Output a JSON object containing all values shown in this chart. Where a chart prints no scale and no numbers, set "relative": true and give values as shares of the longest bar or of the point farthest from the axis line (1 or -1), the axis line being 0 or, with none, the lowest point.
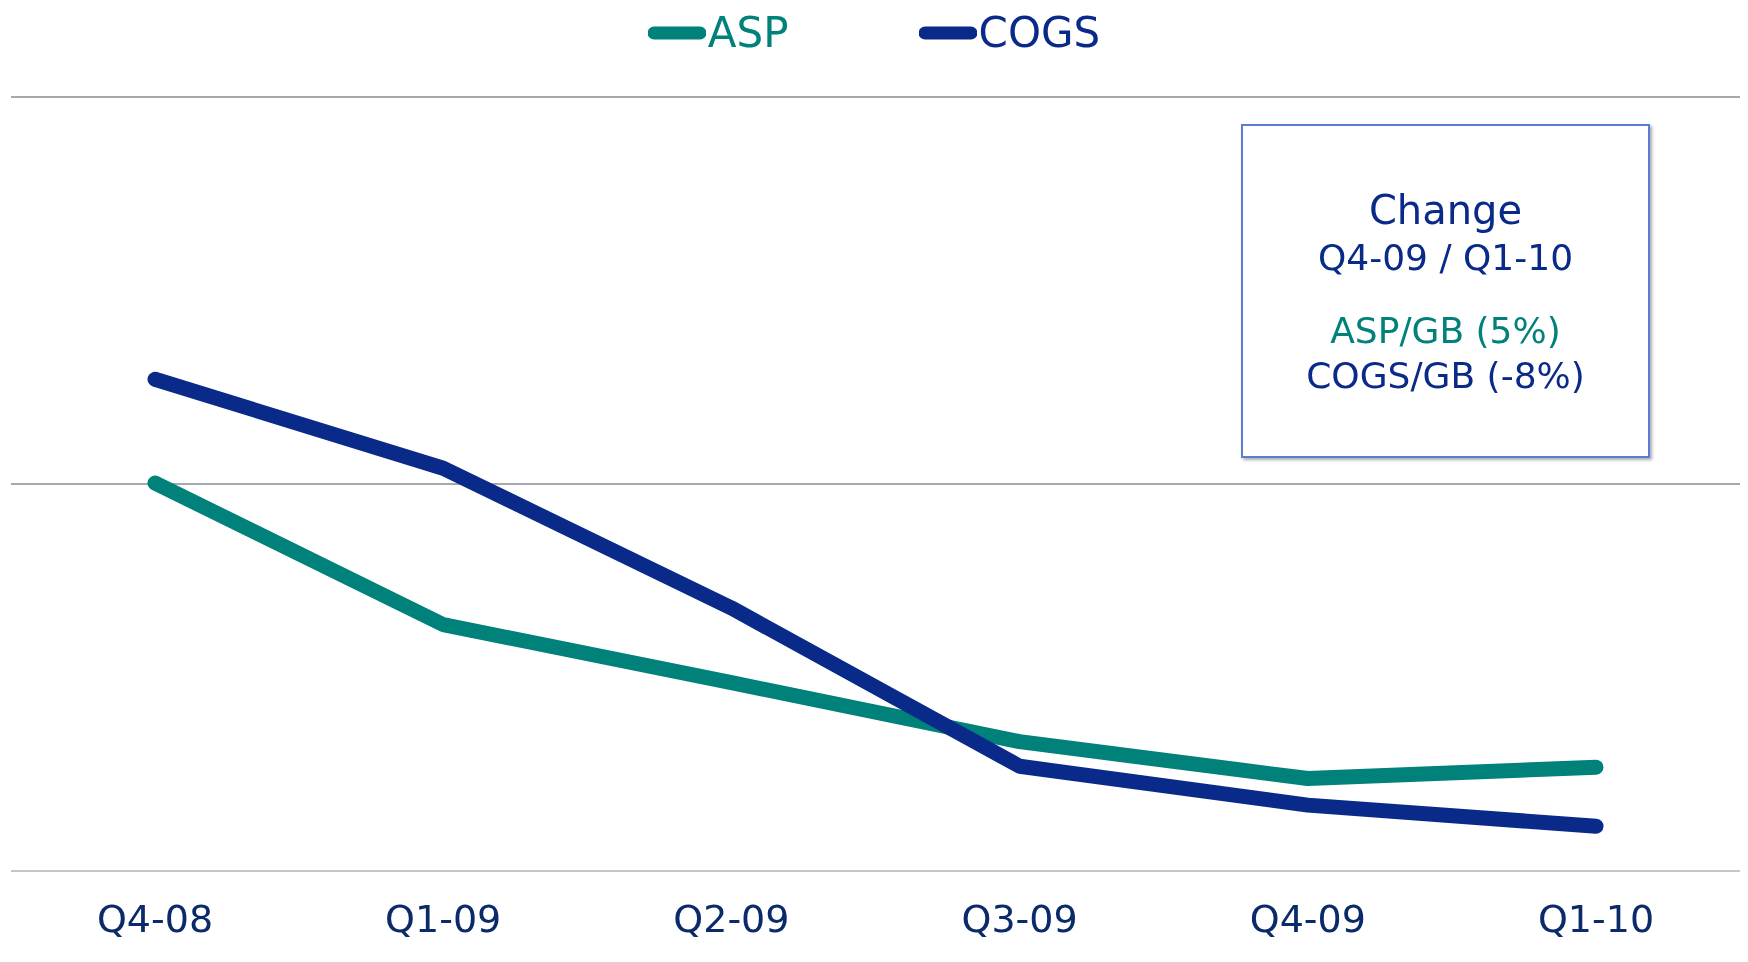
{
  "chart_data": {
    "type": "line",
    "relative": true,
    "ref_lines": [
      {
        "axis": "y",
        "value": 0.787,
        "color": "#8a8a96"
      },
      {
        "axis": "y",
        "value": 1.574,
        "color": "#8a8a96"
      }
    ],
    "legend": "top",
    "marker": "none",
    "line_style": "solid",
    "categories": [
      "Q4-08",
      "Q1-09",
      "Q2-09",
      "Q3-09",
      "Q4-09",
      "Q1-10"
    ],
    "series": [
      {
        "name": "ASP",
        "color": "#00827a",
        "values": [
          0.789,
          0.501,
          0.383,
          0.263,
          0.188,
          0.211
        ]
      },
      {
        "name": "COGS",
        "color": "#0a2a8a",
        "values": [
          1,
          0.819,
          0.535,
          0.213,
          0.134,
          0.091
        ]
      }
    ],
    "annotations": [
      "Change",
      "Q4-09 / Q1-10",
      "ASP/GB (5%)",
      "COGS/GB (-8%)"
    ]
  }
}
